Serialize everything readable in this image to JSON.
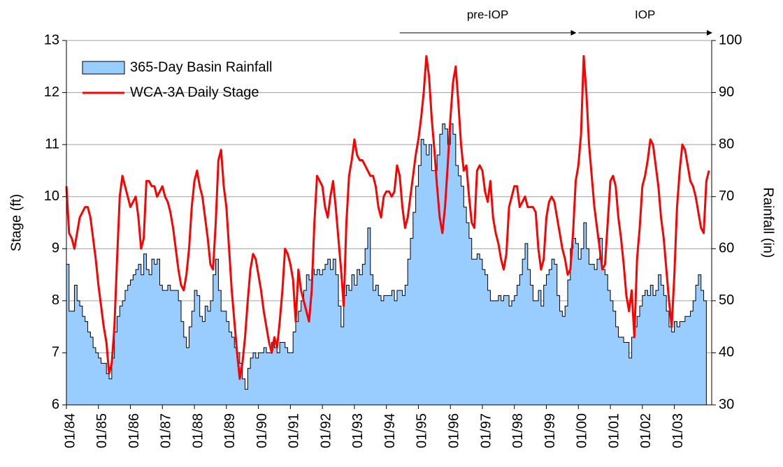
{
  "chart_data": {
    "type": "line",
    "y_label": "Stage (ft)",
    "y2_label": "Rainfall (in)",
    "x": [
      "1984-01",
      "1984-02",
      "1984-03",
      "1984-04",
      "1984-05",
      "1984-06",
      "1984-07",
      "1984-08",
      "1984-09",
      "1984-10",
      "1984-11",
      "1984-12",
      "1985-01",
      "1985-02",
      "1985-03",
      "1985-04",
      "1985-05",
      "1985-06",
      "1985-07",
      "1985-08",
      "1985-09",
      "1985-10",
      "1985-11",
      "1985-12",
      "1986-01",
      "1986-02",
      "1986-03",
      "1986-04",
      "1986-05",
      "1986-06",
      "1986-07",
      "1986-08",
      "1986-09",
      "1986-10",
      "1986-11",
      "1986-12",
      "1987-01",
      "1987-02",
      "1987-03",
      "1987-04",
      "1987-05",
      "1987-06",
      "1987-07",
      "1987-08",
      "1987-09",
      "1987-10",
      "1987-11",
      "1987-12",
      "1988-01",
      "1988-02",
      "1988-03",
      "1988-04",
      "1988-05",
      "1988-06",
      "1988-07",
      "1988-08",
      "1988-09",
      "1988-10",
      "1988-11",
      "1988-12",
      "1989-01",
      "1989-02",
      "1989-03",
      "1989-04",
      "1989-05",
      "1989-06",
      "1989-07",
      "1989-08",
      "1989-09",
      "1989-10",
      "1989-11",
      "1989-12",
      "1990-01",
      "1990-02",
      "1990-03",
      "1990-04",
      "1990-05",
      "1990-06",
      "1990-07",
      "1990-08",
      "1990-09",
      "1990-10",
      "1990-11",
      "1990-12",
      "1991-01",
      "1991-02",
      "1991-03",
      "1991-04",
      "1991-05",
      "1991-06",
      "1991-07",
      "1991-08",
      "1991-09",
      "1991-10",
      "1991-11",
      "1991-12",
      "1992-01",
      "1992-02",
      "1992-03",
      "1992-04",
      "1992-05",
      "1992-06",
      "1992-07",
      "1992-08",
      "1992-09",
      "1992-10",
      "1992-11",
      "1992-12",
      "1993-01",
      "1993-02",
      "1993-03",
      "1993-04",
      "1993-05",
      "1993-06",
      "1993-07",
      "1993-08",
      "1993-09",
      "1993-10",
      "1993-11",
      "1993-12",
      "1994-01",
      "1994-02",
      "1994-03",
      "1994-04",
      "1994-05",
      "1994-06",
      "1994-07",
      "1994-08",
      "1994-09",
      "1994-10",
      "1994-11",
      "1994-12",
      "1995-01",
      "1995-02",
      "1995-03",
      "1995-04",
      "1995-05",
      "1995-06",
      "1995-07",
      "1995-08",
      "1995-09",
      "1995-10",
      "1995-11",
      "1995-12",
      "1996-01",
      "1996-02",
      "1996-03",
      "1996-04",
      "1996-05",
      "1996-06",
      "1996-07",
      "1996-08",
      "1996-09",
      "1996-10",
      "1996-11",
      "1996-12",
      "1997-01",
      "1997-02",
      "1997-03",
      "1997-04",
      "1997-05",
      "1997-06",
      "1997-07",
      "1997-08",
      "1997-09",
      "1997-10",
      "1997-11",
      "1997-12",
      "1998-01",
      "1998-02",
      "1998-03",
      "1998-04",
      "1998-05",
      "1998-06",
      "1998-07",
      "1998-08",
      "1998-09",
      "1998-10",
      "1998-11",
      "1998-12",
      "1999-01",
      "1999-02",
      "1999-03",
      "1999-04",
      "1999-05",
      "1999-06",
      "1999-07",
      "1999-08",
      "1999-09",
      "1999-10",
      "1999-11",
      "1999-12",
      "2000-01",
      "2000-02",
      "2000-03",
      "2000-04",
      "2000-05",
      "2000-06",
      "2000-07",
      "2000-08",
      "2000-09",
      "2000-10",
      "2000-11",
      "2000-12",
      "2001-01",
      "2001-02",
      "2001-03",
      "2001-04",
      "2001-05",
      "2001-06",
      "2001-07",
      "2001-08",
      "2001-09",
      "2001-10",
      "2001-11",
      "2001-12",
      "2002-01",
      "2002-02",
      "2002-03",
      "2002-04",
      "2002-05",
      "2002-06",
      "2002-07",
      "2002-08",
      "2002-09",
      "2002-10",
      "2002-11",
      "2002-12",
      "2003-01",
      "2003-02",
      "2003-03",
      "2003-04",
      "2003-05",
      "2003-06",
      "2003-07",
      "2003-08",
      "2003-09",
      "2003-10",
      "2003-11",
      "2003-12",
      "2004-01",
      "2004-02"
    ],
    "series": [
      {
        "name": "365-Day Basin Rainfall",
        "type": "area",
        "axis": "y2",
        "color": "#99ccff",
        "values": [
          57,
          48,
          48,
          53,
          50,
          49,
          47,
          46,
          44,
          43,
          41,
          40,
          39,
          38,
          38,
          36,
          35,
          39,
          44,
          47,
          49,
          50,
          52,
          53,
          54,
          55,
          56,
          57,
          55,
          59,
          56,
          55,
          58,
          57,
          58,
          53,
          52,
          52,
          53,
          52,
          52,
          52,
          50,
          46,
          43,
          41,
          45,
          48,
          52,
          51,
          47,
          46,
          49,
          48,
          50,
          55,
          58,
          52,
          48,
          48,
          46,
          44,
          43,
          41,
          40,
          38,
          35,
          33,
          37,
          39,
          40,
          39,
          40,
          40,
          41,
          40,
          40,
          42,
          41,
          40,
          42,
          42,
          41,
          40,
          40,
          44,
          46,
          48,
          50,
          52,
          55,
          54,
          56,
          55,
          56,
          55,
          56,
          57,
          58,
          56,
          58,
          55,
          49,
          45,
          51,
          53,
          52,
          55,
          53,
          56,
          55,
          57,
          60,
          64,
          55,
          52,
          53,
          51,
          50,
          51,
          51,
          51,
          52,
          50,
          52,
          52,
          51,
          53,
          58,
          62,
          67,
          72,
          76,
          81,
          80,
          78,
          80,
          75,
          75,
          78,
          82,
          84,
          83,
          80,
          84,
          82,
          76,
          74,
          72,
          68,
          65,
          62,
          58,
          58,
          59,
          58,
          56,
          55,
          52,
          50,
          50,
          50,
          51,
          50,
          51,
          51,
          49,
          50,
          51,
          53,
          55,
          58,
          61,
          56,
          53,
          50,
          50,
          52,
          49,
          53,
          55,
          56,
          58,
          57,
          51,
          48,
          47,
          49,
          54,
          60,
          62,
          61,
          58,
          60,
          65,
          60,
          57,
          57,
          56,
          58,
          62,
          56,
          55,
          52,
          50,
          48,
          45,
          43,
          43,
          42,
          42,
          39,
          43,
          45,
          47,
          49,
          51,
          52,
          51,
          53,
          51,
          52,
          55,
          53,
          51,
          48,
          45,
          44,
          46,
          45,
          46,
          46,
          47,
          47,
          48,
          50,
          53,
          55,
          52,
          50,
          null,
          null
        ]
      },
      {
        "name": "WCA-3A Daily Stage",
        "type": "line",
        "axis": "y",
        "color": "#ff0000",
        "values": [
          10.2,
          9.3,
          9.2,
          9.0,
          9.3,
          9.6,
          9.7,
          9.8,
          9.8,
          9.6,
          9.2,
          8.8,
          8.3,
          7.9,
          7.5,
          7.2,
          6.6,
          6.8,
          7.5,
          8.8,
          10.0,
          10.4,
          10.2,
          10.0,
          9.8,
          9.9,
          10.0,
          9.6,
          9.0,
          9.2,
          10.3,
          10.3,
          10.2,
          10.2,
          10.0,
          10.1,
          10.2,
          10.0,
          9.9,
          9.7,
          9.4,
          9.0,
          8.6,
          8.3,
          8.2,
          8.5,
          9.0,
          9.8,
          10.3,
          10.5,
          10.2,
          10.0,
          9.6,
          9.2,
          8.7,
          8.6,
          9.5,
          10.7,
          10.9,
          10.2,
          9.8,
          9.0,
          8.2,
          7.6,
          7.0,
          6.5,
          6.8,
          7.3,
          8.0,
          8.6,
          8.9,
          8.8,
          8.5,
          8.2,
          7.8,
          7.5,
          7.2,
          7.0,
          7.3,
          7.1,
          7.6,
          8.2,
          9.0,
          8.9,
          8.7,
          8.4,
          7.6,
          8.6,
          8.2,
          8.0,
          7.8,
          7.6,
          8.2,
          9.5,
          10.4,
          10.3,
          10.2,
          9.8,
          9.6,
          10.0,
          10.3,
          9.8,
          9.2,
          8.6,
          7.9,
          9.5,
          10.4,
          10.7,
          11.1,
          10.8,
          10.7,
          10.7,
          10.6,
          10.5,
          10.4,
          10.4,
          10.2,
          9.8,
          9.6,
          10.0,
          10.1,
          10.1,
          10.0,
          10.1,
          10.6,
          10.4,
          9.8,
          9.4,
          9.6,
          10.0,
          10.4,
          10.8,
          11.1,
          11.5,
          12.0,
          12.7,
          12.3,
          11.5,
          10.9,
          10.2,
          9.6,
          9.3,
          9.8,
          10.6,
          11.5,
          12.2,
          12.5,
          11.8,
          11.0,
          10.5,
          10.6,
          10.0,
          9.5,
          9.4,
          10.5,
          10.6,
          10.5,
          10.1,
          9.9,
          10.3,
          9.6,
          9.3,
          9.1,
          8.8,
          8.6,
          8.9,
          9.8,
          10.0,
          10.2,
          10.2,
          9.8,
          9.9,
          10.0,
          9.8,
          9.8,
          9.8,
          9.7,
          9.0,
          8.6,
          8.8,
          9.6,
          9.9,
          10.0,
          9.9,
          9.6,
          9.3,
          9.0,
          8.8,
          8.5,
          8.6,
          9.3,
          10.3,
          10.6,
          11.2,
          12.7,
          12.0,
          11.0,
          10.4,
          9.8,
          9.4,
          9.0,
          8.6,
          8.7,
          9.5,
          10.3,
          10.4,
          10.2,
          9.6,
          9.2,
          8.7,
          8.1,
          7.8,
          8.2,
          7.3,
          8.8,
          9.4,
          10.2,
          10.4,
          10.7,
          11.1,
          11.0,
          10.6,
          10.2,
          9.6,
          9.2,
          8.6,
          8.0,
          7.5,
          8.5,
          9.8,
          10.5,
          11.0,
          10.9,
          10.6,
          10.3,
          10.2,
          10.0,
          9.7,
          9.4,
          9.3,
          10.3,
          10.5
        ]
      }
    ],
    "xlim": [
      "1984-01",
      "2004-03"
    ],
    "xticks": [
      {
        "value": "1984-01",
        "label": "01/84"
      },
      {
        "value": "1985-01",
        "label": "01/85"
      },
      {
        "value": "1986-01",
        "label": "01/86"
      },
      {
        "value": "1987-01",
        "label": "01/87"
      },
      {
        "value": "1988-01",
        "label": "01/88"
      },
      {
        "value": "1989-01",
        "label": "01/89"
      },
      {
        "value": "1990-01",
        "label": "01/90"
      },
      {
        "value": "1991-01",
        "label": "01/91"
      },
      {
        "value": "1992-01",
        "label": "01/92"
      },
      {
        "value": "1993-01",
        "label": "01/93"
      },
      {
        "value": "1994-01",
        "label": "01/94"
      },
      {
        "value": "1995-01",
        "label": "01/95"
      },
      {
        "value": "1996-01",
        "label": "01/96"
      },
      {
        "value": "1997-01",
        "label": "01/97"
      },
      {
        "value": "1998-01",
        "label": "01/98"
      },
      {
        "value": "1999-01",
        "label": "01/99"
      },
      {
        "value": "2000-01",
        "label": "01/00"
      },
      {
        "value": "2001-01",
        "label": "01/01"
      },
      {
        "value": "2002-01",
        "label": "01/02"
      },
      {
        "value": "2003-01",
        "label": "01/03"
      }
    ],
    "ylim": [
      6,
      13
    ],
    "yticks": [
      6,
      7,
      8,
      9,
      10,
      11,
      12,
      13
    ],
    "y2lim": [
      30,
      100
    ],
    "y2ticks": [
      30,
      40,
      50,
      60,
      70,
      80,
      90,
      100
    ],
    "grid": true,
    "legend": "upper left",
    "annotations": [
      {
        "text": "pre-IOP",
        "start": "1994-06",
        "end": "1999-12"
      },
      {
        "text": "IOP",
        "start": "2000-01",
        "end": "2004-03"
      }
    ]
  }
}
